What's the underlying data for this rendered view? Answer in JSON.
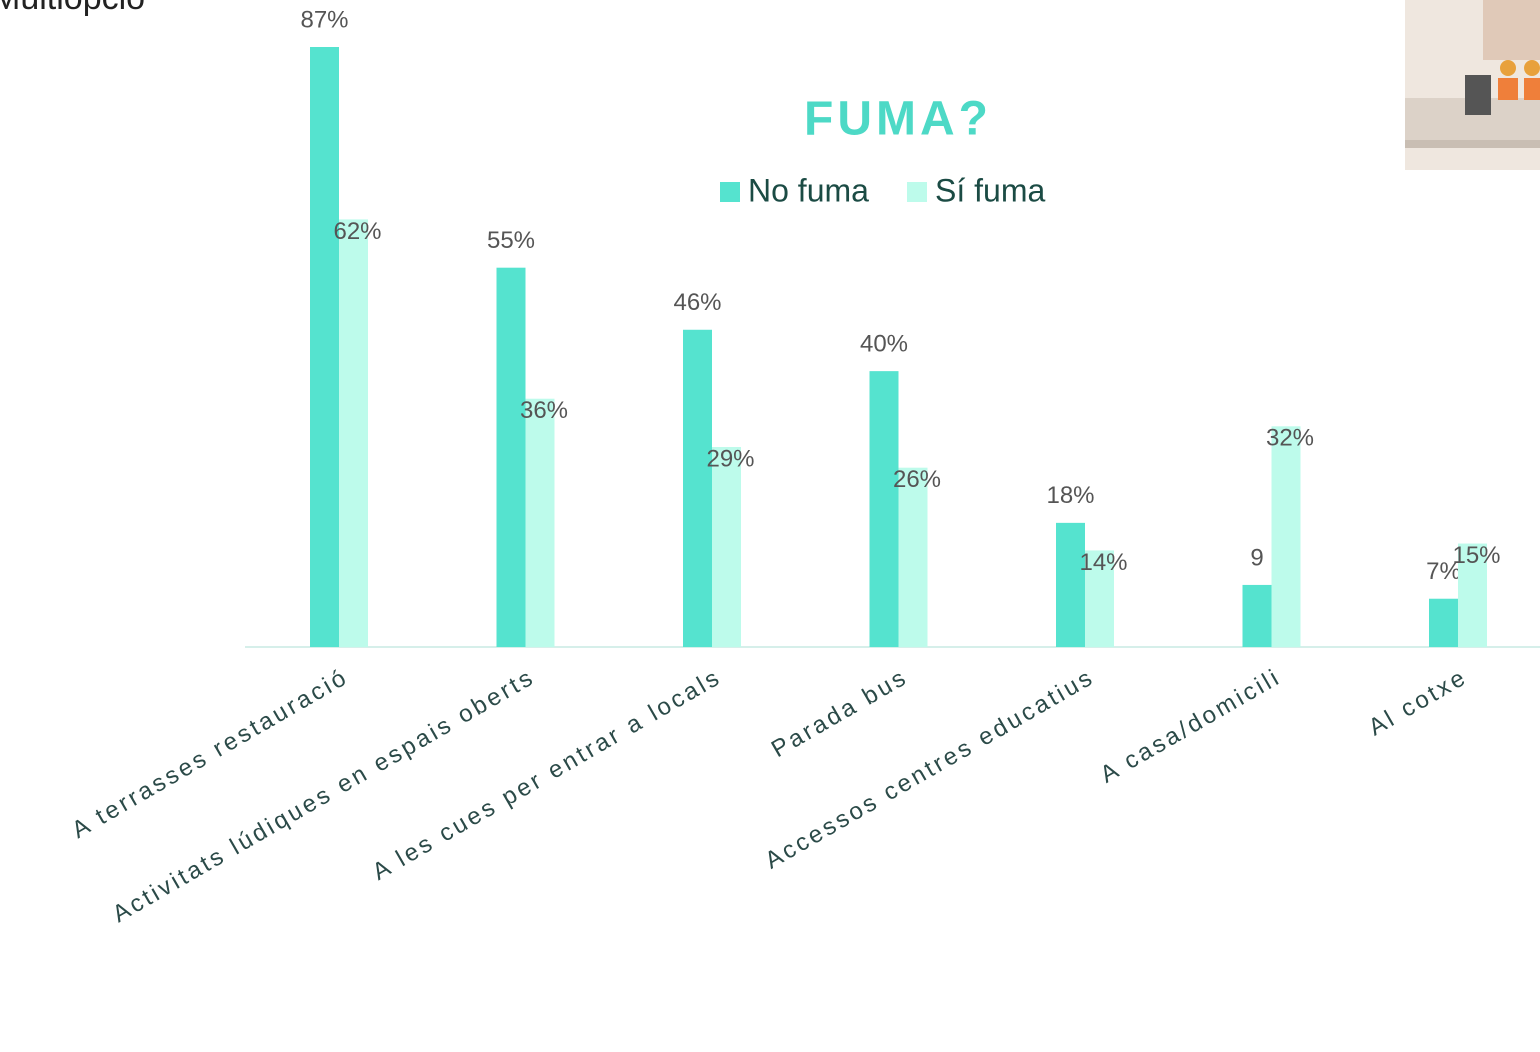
{
  "chart_data": {
    "type": "bar",
    "title": "FUMA?",
    "subtitle": "Multiopció",
    "categories": [
      "A terrasses restauració",
      "Activitats lúdiques en espais oberts",
      "A les cues per entrar a locals",
      "Parada bus",
      "Accessos centres educatius",
      "A casa/domicili",
      "Al cotxe"
    ],
    "series": [
      {
        "name": "No fuma",
        "color": "#55e3cf",
        "values": [
          87,
          55,
          46,
          40,
          18,
          9,
          7
        ],
        "value_labels": [
          "87%",
          "55%",
          "46%",
          "40%",
          "18%",
          "9",
          "7%"
        ]
      },
      {
        "name": "Sí fuma",
        "color": "#bdfbeb",
        "values": [
          62,
          36,
          29,
          26,
          14,
          32,
          15
        ],
        "value_labels": [
          "62%",
          "36%",
          "29%",
          "26%",
          "14%",
          "32%",
          "15%"
        ]
      }
    ]
  }
}
